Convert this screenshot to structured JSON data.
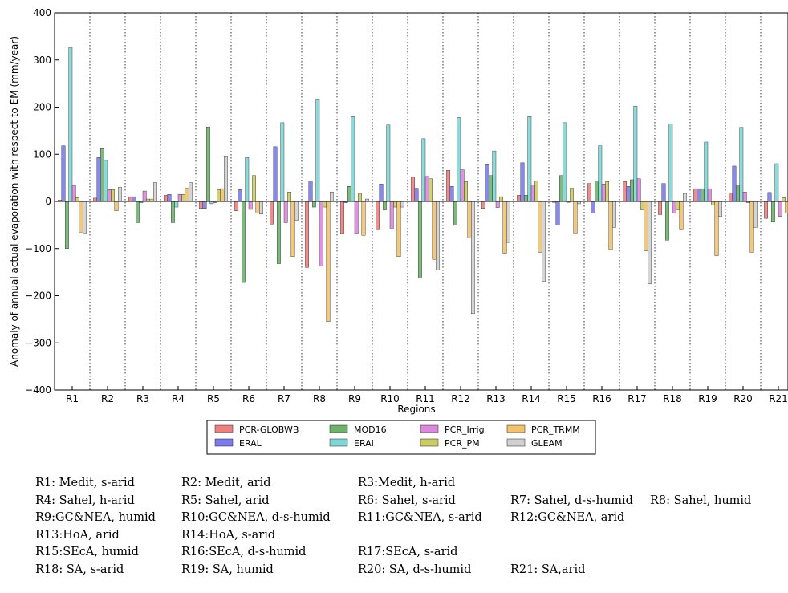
{
  "chart_data": {
    "type": "bar",
    "title": "",
    "xlabel": "Regions",
    "ylabel": "Anomaly of annual actual evaporation with respect to EM (mm/year)",
    "ylim": [
      -400,
      400
    ],
    "yticks": [
      -400,
      -300,
      -200,
      -100,
      0,
      100,
      200,
      300,
      400
    ],
    "grid": "vertical dotted separators between regions",
    "legend_position": "bottom-center",
    "categories": [
      "R1",
      "R2",
      "R3",
      "R4",
      "R5",
      "R6",
      "R7",
      "R8",
      "R9",
      "R10",
      "R11",
      "R12",
      "R13",
      "R14",
      "R15",
      "R16",
      "R17",
      "R18",
      "R19",
      "R20",
      "R21"
    ],
    "series": [
      {
        "name": "PCR-GLOBWB",
        "color": "#f08080",
        "values": [
          3,
          7,
          10,
          13,
          -15,
          -20,
          -48,
          -140,
          -68,
          -60,
          52,
          66,
          -15,
          13,
          -2,
          38,
          42,
          -28,
          27,
          18,
          -36
        ]
      },
      {
        "name": "ERAL",
        "color": "#7b7bef",
        "values": [
          118,
          93,
          10,
          15,
          -15,
          25,
          116,
          43,
          -3,
          37,
          28,
          32,
          78,
          82,
          -50,
          -25,
          32,
          38,
          27,
          75,
          19
        ]
      },
      {
        "name": "MOD16",
        "color": "#6fb26f",
        "values": [
          -100,
          112,
          -45,
          -45,
          158,
          -172,
          -132,
          -12,
          32,
          -18,
          -162,
          -50,
          55,
          13,
          55,
          43,
          46,
          -82,
          27,
          33,
          -44
        ]
      },
      {
        "name": "ERAI",
        "color": "#7fd6d6",
        "values": [
          326,
          87,
          -3,
          -12,
          -5,
          93,
          167,
          217,
          180,
          162,
          133,
          178,
          107,
          180,
          167,
          118,
          202,
          164,
          126,
          157,
          80
        ]
      },
      {
        "name": "PCR_Irrig",
        "color": "#dd88dd",
        "values": [
          34,
          25,
          22,
          15,
          -3,
          -17,
          -45,
          -137,
          -68,
          -58,
          53,
          67,
          -13,
          35,
          -2,
          37,
          48,
          -25,
          27,
          20,
          -32
        ]
      },
      {
        "name": "PCR_PM",
        "color": "#cccc66",
        "values": [
          8,
          25,
          5,
          15,
          25,
          55,
          20,
          -12,
          17,
          -12,
          48,
          42,
          10,
          43,
          28,
          42,
          -18,
          -18,
          -8,
          -3,
          8
        ]
      },
      {
        "name": "PCR_TRMM",
        "color": "#f2c26a",
        "values": [
          -65,
          -20,
          5,
          28,
          27,
          -25,
          -117,
          -255,
          -72,
          -117,
          -123,
          -77,
          -110,
          -108,
          -67,
          -102,
          -105,
          -60,
          -115,
          -108,
          -25
        ]
      },
      {
        "name": "GLEAM",
        "color": "#d0d0d0",
        "values": [
          -68,
          30,
          40,
          40,
          95,
          -27,
          -40,
          20,
          5,
          -12,
          -145,
          -238,
          -87,
          -170,
          -5,
          -55,
          -175,
          17,
          -32,
          -55,
          -5
        ]
      }
    ]
  },
  "notes": [
    [
      "R1: Medit, s-arid",
      "R2: Medit, arid",
      "R3:Medit, h-arid",
      "",
      ""
    ],
    [
      "R4: Sahel, h-arid",
      "R5: Sahel, arid",
      "R6: Sahel, s-arid",
      "R7: Sahel, d-s-humid",
      "R8: Sahel, humid"
    ],
    [
      "R9:GC&NEA, humid",
      "R10:GC&NEA, d-s-humid",
      "R11:GC&NEA, s-arid",
      "R12:GC&NEA, arid",
      ""
    ],
    [
      "R13:HoA, arid",
      "R14:HoA, s-arid",
      "",
      "",
      ""
    ],
    [
      "R15:SEcA, humid",
      "R16:SEcA, d-s-humid",
      "R17:SEcA, s-arid",
      "",
      ""
    ],
    [
      "R18: SA, s-arid",
      "R19: SA, humid",
      "R20: SA, d-s-humid",
      "R21: SA,arid",
      ""
    ]
  ]
}
